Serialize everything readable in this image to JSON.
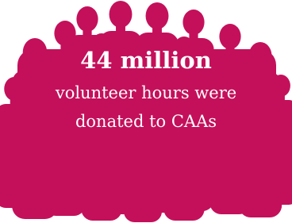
{
  "headline": "44 million",
  "body": [
    "volunteer hours were",
    "donated to CAAs"
  ]
}
